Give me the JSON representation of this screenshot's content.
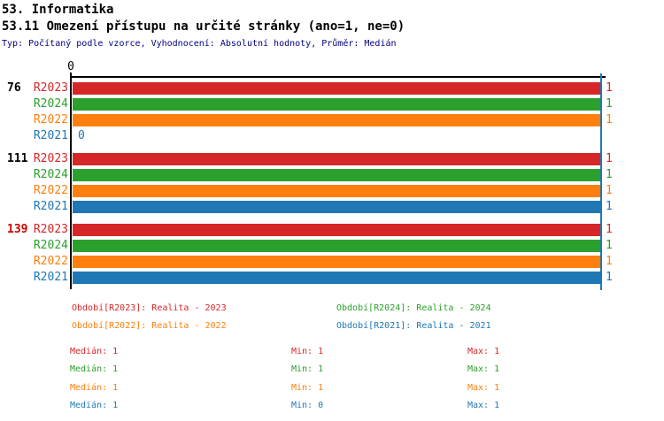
{
  "header": {
    "title": "53. Informatika",
    "subtitle": "53.11 Omezení přístupu na určité stránky (ano=1, ne=0)",
    "meta": "Typ: Počítaný podle vzorce, Vyhodnocení: Absolutní hodnoty, Průměr: Medián"
  },
  "colors": {
    "red": "#d62728",
    "green": "#2ca02c",
    "orange": "#ff7f0e",
    "blue": "#1f77b4",
    "meta_text": "#000080",
    "axis": "#000000",
    "highlight_red": "#cc0000",
    "reference_line": "#1f77b4"
  },
  "chart_data": {
    "type": "bar",
    "orientation": "horizontal",
    "title": "53.11 Omezení přístupu na určité stránky (ano=1, ne=0)",
    "xlim": [
      0,
      1
    ],
    "axis_zero_label": "0",
    "reference_line_x": 1,
    "legend_position": "bottom",
    "categories": [
      "76",
      "111",
      "139"
    ],
    "category_colors": [
      "#000000",
      "#000000",
      "#cc0000"
    ],
    "series": [
      {
        "name": "R2023",
        "color": "#d62728",
        "values": [
          1,
          1,
          1
        ],
        "median": 1,
        "min": 1,
        "max": 1
      },
      {
        "name": "R2024",
        "color": "#2ca02c",
        "values": [
          1,
          1,
          1
        ],
        "median": 1,
        "min": 1,
        "max": 1
      },
      {
        "name": "R2022",
        "color": "#ff7f0e",
        "values": [
          1,
          1,
          1
        ],
        "median": 1,
        "min": 1,
        "max": 1
      },
      {
        "name": "R2021",
        "color": "#1f77b4",
        "values": [
          0,
          1,
          1
        ],
        "median": 1,
        "min": 0,
        "max": 1
      }
    ]
  },
  "legend": {
    "items": [
      {
        "text": "Období[R2023]: Realita - 2023",
        "color": "#d62728"
      },
      {
        "text": "Období[R2024]: Realita - 2024",
        "color": "#2ca02c"
      },
      {
        "text": "Období[R2022]: Realita - 2022",
        "color": "#ff7f0e"
      },
      {
        "text": "Období[R2021]: Realita - 2021",
        "color": "#1f77b4"
      }
    ]
  },
  "stats": {
    "rows": [
      {
        "median": "Medián: 1",
        "min": "Min: 1",
        "max": "Max: 1",
        "color": "#d62728"
      },
      {
        "median": "Medián: 1",
        "min": "Min: 1",
        "max": "Max: 1",
        "color": "#2ca02c"
      },
      {
        "median": "Medián: 1",
        "min": "Min: 1",
        "max": "Max: 1",
        "color": "#ff7f0e"
      },
      {
        "median": "Medián: 1",
        "min": "Min: 0",
        "max": "Max: 1",
        "color": "#1f77b4"
      }
    ]
  }
}
